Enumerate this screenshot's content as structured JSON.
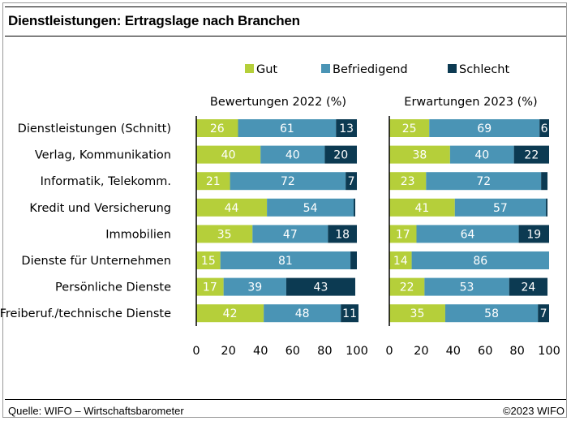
{
  "header": {
    "title": "Dienstleistungen: Ertragslage nach Branchen"
  },
  "footer": {
    "source": "Quelle: WIFO – Wirtschaftsbarometer",
    "copyright": "©2023 WIFO"
  },
  "chart_data": {
    "type": "bar",
    "orientation": "horizontal",
    "stacked": true,
    "categories": [
      "Dienstleistungen (Schnitt)",
      "Verlag, Kommunikation",
      "Informatik, Telekomm.",
      "Kredit und Versicherung",
      "Immobilien",
      "Dienste für Unternehmen",
      "Persönliche Dienste",
      "Freiberuf./technische Dienste"
    ],
    "legend": {
      "placement": "top",
      "items": [
        {
          "name": "Gut",
          "color": "#b5cf3a"
        },
        {
          "name": "Befriedigend",
          "color": "#4a94b5"
        },
        {
          "name": "Schlecht",
          "color": "#0c3a52"
        }
      ]
    },
    "xlim": [
      0,
      100
    ],
    "xticks": [
      0,
      20,
      40,
      60,
      80,
      100
    ],
    "grid": false,
    "panels": [
      {
        "title": "Bewertungen 2022 (%)",
        "series": [
          {
            "name": "Gut",
            "values": [
              26,
              40,
              21,
              44,
              35,
              15,
              17,
              42
            ]
          },
          {
            "name": "Befriedigend",
            "values": [
              61,
              40,
              72,
              54,
              47,
              81,
              39,
              48
            ]
          },
          {
            "name": "Schlecht",
            "values": [
              13,
              20,
              7,
              1,
              18,
              4,
              43,
              11
            ]
          }
        ],
        "labels": [
          [
            "26",
            "61",
            "13"
          ],
          [
            "40",
            "40",
            "20"
          ],
          [
            "21",
            "72",
            "7"
          ],
          [
            "44",
            "54",
            ""
          ],
          [
            "35",
            "47",
            "18"
          ],
          [
            "15",
            "81",
            ""
          ],
          [
            "17",
            "39",
            "43"
          ],
          [
            "42",
            "48",
            "11"
          ]
        ]
      },
      {
        "title": "Erwartungen 2023 (%)",
        "series": [
          {
            "name": "Gut",
            "values": [
              25,
              38,
              23,
              41,
              17,
              14,
              22,
              35
            ]
          },
          {
            "name": "Befriedigend",
            "values": [
              69,
              40,
              72,
              57,
              64,
              86,
              53,
              58
            ]
          },
          {
            "name": "Schlecht",
            "values": [
              6,
              22,
              4,
              1,
              19,
              0,
              24,
              7
            ]
          }
        ],
        "labels": [
          [
            "25",
            "69",
            "6"
          ],
          [
            "38",
            "40",
            "22"
          ],
          [
            "23",
            "72",
            ""
          ],
          [
            "41",
            "57",
            ""
          ],
          [
            "17",
            "64",
            "19"
          ],
          [
            "14",
            "86",
            ""
          ],
          [
            "22",
            "53",
            "24"
          ],
          [
            "35",
            "58",
            "7"
          ]
        ]
      }
    ]
  }
}
